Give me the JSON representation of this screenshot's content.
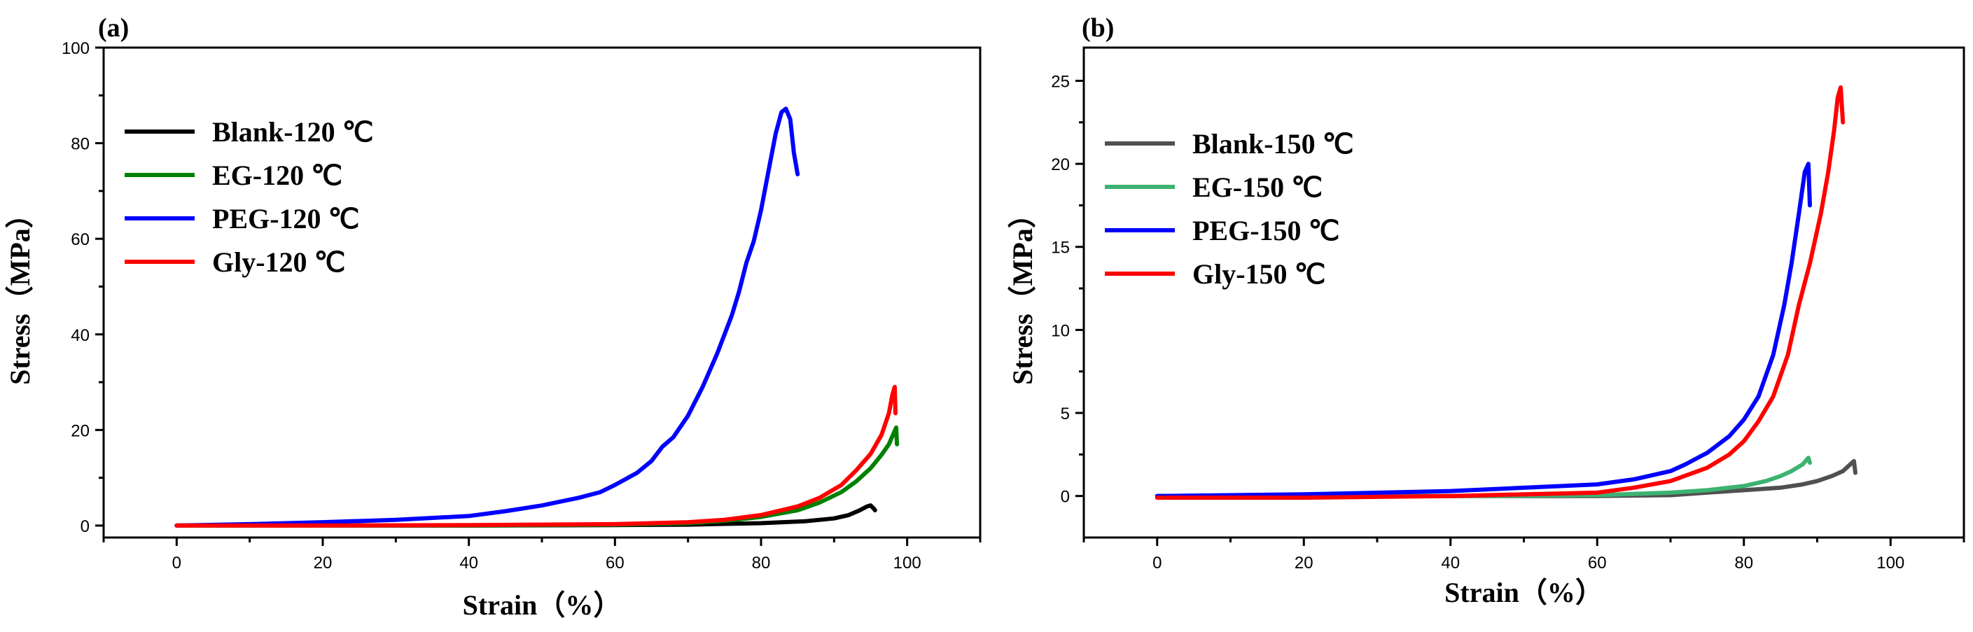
{
  "chart_data": [
    {
      "type": "line",
      "panel_label": "(a)",
      "xlabel": "Strain（%）",
      "ylabel": "Stress（MPa）",
      "xlim": [
        -10,
        110
      ],
      "ylim": [
        -2.5,
        100
      ],
      "xticks": [
        0,
        20,
        40,
        60,
        80,
        100
      ],
      "yticks": [
        0,
        20,
        40,
        60,
        80,
        100
      ],
      "legend_position": "top-left",
      "series": [
        {
          "name": "Blank-120 ℃",
          "color": "#000000",
          "x": [
            0,
            20,
            40,
            60,
            70,
            80,
            86,
            90,
            92,
            93.5,
            94.5,
            95,
            95.4,
            95.6
          ],
          "y": [
            0,
            0,
            0,
            0.1,
            0.2,
            0.5,
            0.9,
            1.5,
            2.2,
            3.2,
            4.0,
            4.2,
            3.6,
            3.2
          ]
        },
        {
          "name": "EG-120 ℃",
          "color": "#008000",
          "x": [
            0,
            20,
            40,
            60,
            70,
            75,
            80,
            85,
            88,
            91,
            93,
            95,
            96.5,
            97.5,
            98.2,
            98.5,
            98.6
          ],
          "y": [
            0,
            0,
            0,
            0.2,
            0.5,
            1.0,
            1.8,
            3.2,
            4.8,
            7.0,
            9.2,
            12.0,
            14.8,
            17.0,
            19.5,
            20.5,
            17.0
          ]
        },
        {
          "name": "PEG-120 ℃",
          "color": "#0000ff",
          "x": [
            0,
            10,
            20,
            30,
            40,
            45,
            50,
            55,
            58,
            60,
            63,
            65,
            66.5,
            68,
            70,
            72,
            74,
            76,
            77,
            78,
            79,
            80,
            81,
            82,
            82.8,
            83.4,
            84,
            84.5,
            85
          ],
          "y": [
            0,
            0.3,
            0.7,
            1.2,
            2.0,
            3.0,
            4.2,
            5.8,
            7.0,
            8.5,
            11.0,
            13.5,
            16.5,
            18.5,
            23.0,
            29.0,
            36.0,
            44.0,
            49.0,
            55.0,
            59.5,
            66.0,
            74.0,
            82.0,
            86.5,
            87.2,
            85.0,
            78.0,
            73.5
          ]
        },
        {
          "name": "Gly-120 ℃",
          "color": "#ff0000",
          "x": [
            0,
            20,
            40,
            60,
            70,
            75,
            80,
            85,
            88,
            91,
            93,
            95,
            96.5,
            97.5,
            98,
            98.3,
            98.4
          ],
          "y": [
            0,
            0,
            0.1,
            0.3,
            0.7,
            1.2,
            2.2,
            4.0,
            5.8,
            8.5,
            11.5,
            15.0,
            19.0,
            23.5,
            27.5,
            29.0,
            23.5
          ]
        }
      ]
    },
    {
      "type": "line",
      "panel_label": "(b)",
      "xlabel": "Strain（%）",
      "ylabel": "Stress（MPa）",
      "xlim": [
        -10,
        110
      ],
      "ylim": [
        -2.5,
        27
      ],
      "xticks": [
        0,
        20,
        40,
        60,
        80,
        100
      ],
      "yticks": [
        0,
        5,
        10,
        15,
        20,
        25
      ],
      "legend_position": "top-left",
      "series": [
        {
          "name": "Blank-150 ℃",
          "color": "#505050",
          "x": [
            0,
            20,
            40,
            60,
            70,
            75,
            80,
            85,
            88,
            90,
            92,
            93.5,
            94.5,
            95,
            95.2
          ],
          "y": [
            0,
            0,
            0,
            0,
            0.05,
            0.2,
            0.35,
            0.5,
            0.7,
            0.9,
            1.2,
            1.5,
            1.9,
            2.1,
            1.4
          ]
        },
        {
          "name": "EG-150 ℃",
          "color": "#3cb371",
          "x": [
            0,
            20,
            40,
            60,
            70,
            75,
            80,
            83,
            85,
            86.5,
            88,
            88.8,
            89
          ],
          "y": [
            0,
            0,
            0,
            0.05,
            0.2,
            0.35,
            0.6,
            0.9,
            1.2,
            1.5,
            1.9,
            2.3,
            2.0
          ]
        },
        {
          "name": "PEG-150 ℃",
          "color": "#0000ff",
          "x": [
            0,
            20,
            40,
            60,
            65,
            70,
            72,
            75,
            78,
            80,
            82,
            84,
            85.5,
            86.5,
            87.5,
            88.3,
            88.8,
            89
          ],
          "y": [
            0,
            0.1,
            0.3,
            0.7,
            1.0,
            1.5,
            1.9,
            2.6,
            3.6,
            4.6,
            6.0,
            8.5,
            11.5,
            14.0,
            17.0,
            19.5,
            20.0,
            17.5
          ]
        },
        {
          "name": "Gly-150 ℃",
          "color": "#ff0000",
          "x": [
            0,
            20,
            40,
            60,
            65,
            70,
            75,
            78,
            80,
            82,
            84,
            86,
            87.5,
            89,
            90.5,
            91.5,
            92.3,
            92.8,
            93.2,
            93.5
          ],
          "y": [
            -0.1,
            -0.1,
            0,
            0.2,
            0.5,
            0.9,
            1.7,
            2.5,
            3.3,
            4.5,
            6.0,
            8.5,
            11.5,
            14.0,
            17.0,
            19.5,
            22.0,
            24.0,
            24.6,
            22.5
          ]
        }
      ]
    }
  ]
}
